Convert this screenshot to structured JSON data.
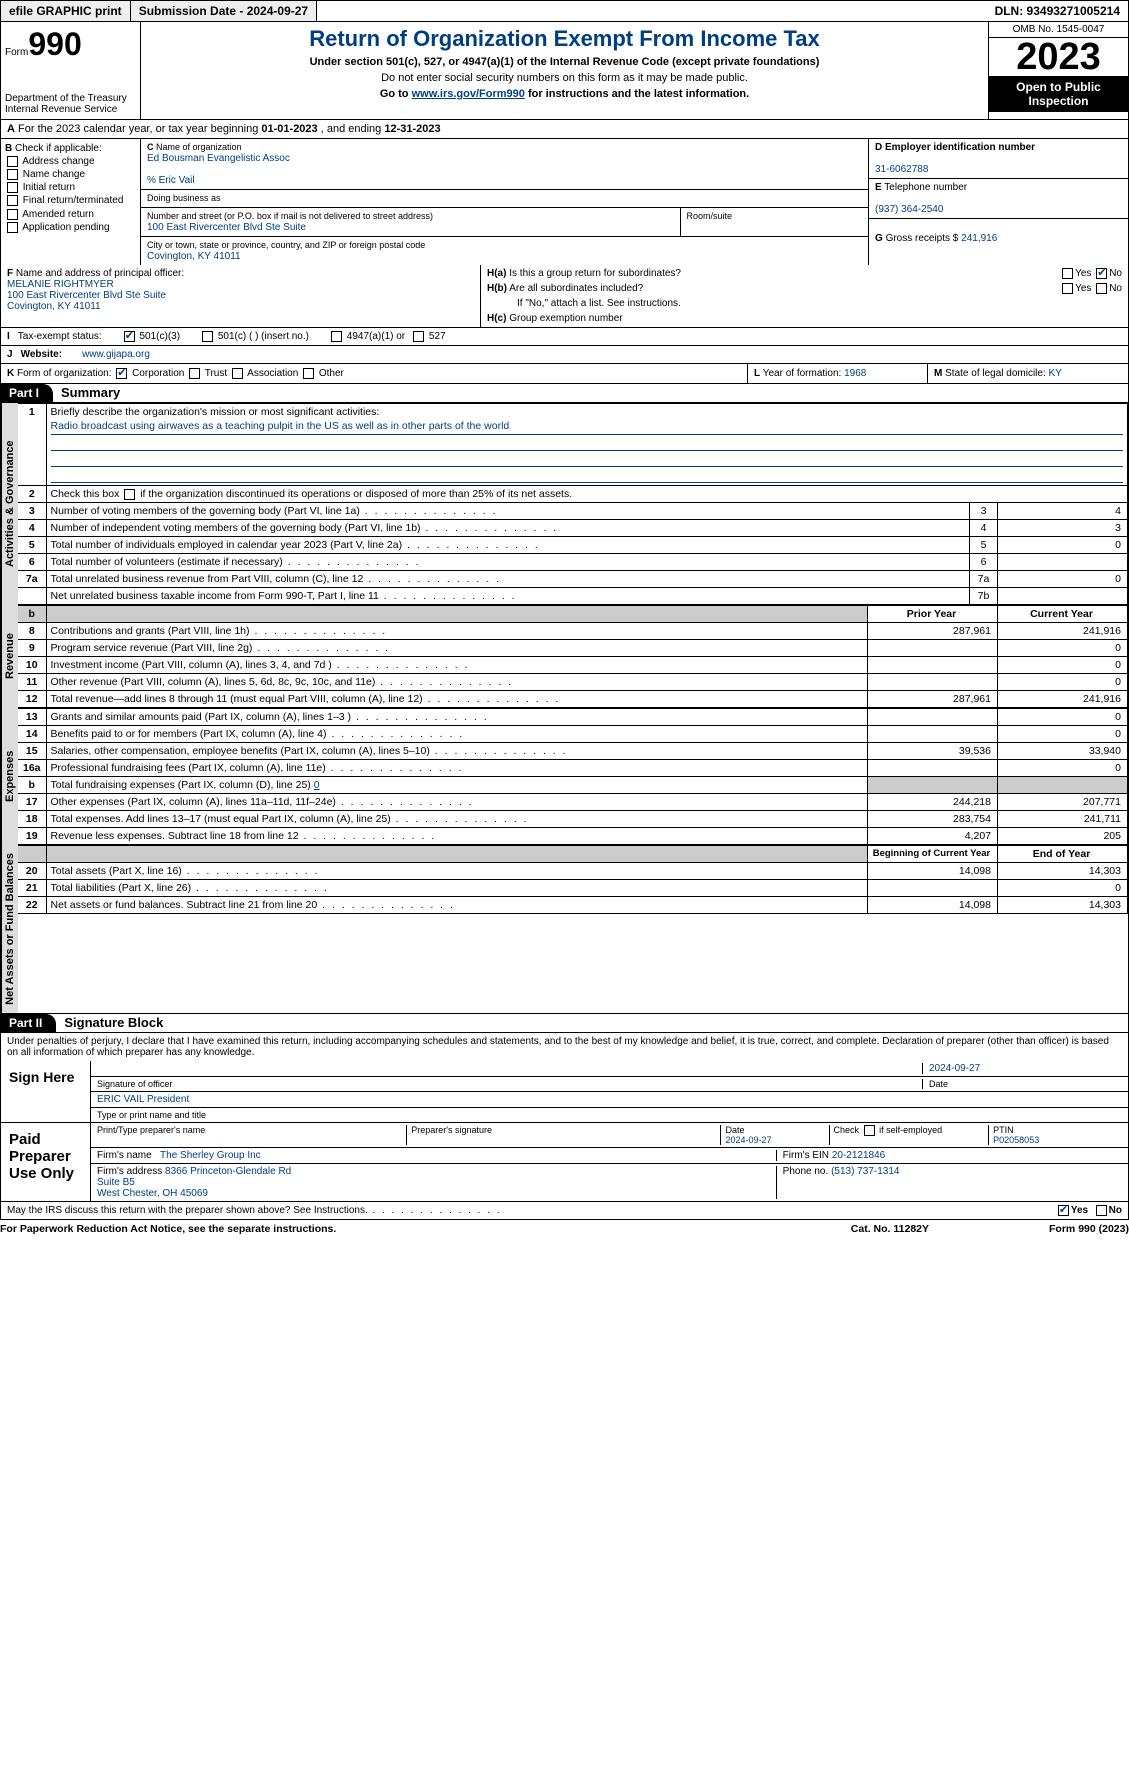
{
  "topbar": {
    "efile": "efile GRAPHIC print",
    "sub": "Submission Date - 2024-09-27",
    "dln": "DLN: 93493271005214"
  },
  "hdr": {
    "form_word": "Form",
    "form_num": "990",
    "dept": "Department of the Treasury\nInternal Revenue Service",
    "title": "Return of Organization Exempt From Income Tax",
    "sub1": "Under section 501(c), 527, or 4947(a)(1) of the Internal Revenue Code (except private foundations)",
    "sub2": "Do not enter social security numbers on this form as it may be made public.",
    "sub3_pre": "Go to ",
    "sub3_link": "www.irs.gov/Form990",
    "sub3_post": " for instructions and the latest information.",
    "omb": "OMB No. 1545-0047",
    "year": "2023",
    "inspect": "Open to Public Inspection"
  },
  "rowA": {
    "text_pre": "For the 2023 calendar year, or tax year beginning ",
    "begin": "01-01-2023",
    "mid": " , and ending ",
    "end": "12-31-2023",
    "label": "A"
  },
  "colB": {
    "hdr": "Check if applicable:",
    "items": [
      "Address change",
      "Name change",
      "Initial return",
      "Final return/terminated",
      "Amended return",
      "Application pending"
    ],
    "label": "B"
  },
  "colC": {
    "name_lbl": "Name of organization",
    "name": "Ed Bousman Evangelistic Assoc",
    "care": "% Eric Vail",
    "dba_lbl": "Doing business as",
    "dba": "",
    "addr_lbl": "Number and street (or P.O. box if mail is not delivered to street address)",
    "room_lbl": "Room/suite",
    "addr": "100 East Rivercenter Blvd Ste Suite",
    "city_lbl": "City or town, state or province, country, and ZIP or foreign postal code",
    "city": "Covington, KY  41011",
    "label": "C"
  },
  "colD": {
    "ein_lbl": "Employer identification number",
    "ein": "31-6062788",
    "label": "D"
  },
  "colE": {
    "tel_lbl": "Telephone number",
    "tel": "(937) 364-2540",
    "label": "E"
  },
  "colG": {
    "lbl": "Gross receipts $",
    "val": "241,916",
    "label": "G"
  },
  "secF": {
    "lbl": "Name and address of principal officer:",
    "name": "MELANIE RIGHTMYER",
    "addr1": "100 East Rivercenter Blvd Ste Suite",
    "addr2": "Covington, KY  41011",
    "label": "F"
  },
  "secH": {
    "a_lbl": "Is this a group return for subordinates?",
    "a_code": "H(a)",
    "b_lbl": "Are all subordinates included?",
    "b_code": "H(b)",
    "b_note": "If \"No,\" attach a list. See instructions.",
    "c_lbl": "Group exemption number",
    "c_code": "H(c)",
    "yes": "Yes",
    "no": "No"
  },
  "rowI": {
    "lbl": "Tax-exempt status:",
    "label": "I",
    "opts": [
      "501(c)(3)",
      "501(c) (  ) (insert no.)",
      "4947(a)(1) or",
      "527"
    ]
  },
  "rowJ": {
    "lbl": "Website:",
    "label": "J",
    "val": "www.gijapa.org"
  },
  "rowK": {
    "lbl": "Form of organization:",
    "label": "K",
    "opts": [
      "Corporation",
      "Trust",
      "Association",
      "Other"
    ],
    "L_lbl": "Year of formation:",
    "L_val": "1968",
    "L": "L",
    "M_lbl": "State of legal domicile:",
    "M_val": "KY",
    "M": "M"
  },
  "part1": {
    "code": "Part I",
    "title": "Summary",
    "q1_lbl": "Briefly describe the organization's mission or most significant activities:",
    "q1_val": "Radio broadcast using airwaves as a teaching pulpit in the US as well as in other parts of the world",
    "q2": "Check this box      if the organization discontinued its operations or disposed of more than 25% of its net assets.",
    "tabs": {
      "ag": "Activities & Governance",
      "rev": "Revenue",
      "exp": "Expenses",
      "na": "Net Assets or Fund Balances"
    },
    "rows": [
      {
        "n": "1",
        "t": "q1"
      },
      {
        "n": "2",
        "t": "q2"
      },
      {
        "n": "3",
        "t": "Number of voting members of the governing body (Part VI, line 1a)",
        "box": "3",
        "c": "4"
      },
      {
        "n": "4",
        "t": "Number of independent voting members of the governing body (Part VI, line 1b)",
        "box": "4",
        "c": "3"
      },
      {
        "n": "5",
        "t": "Total number of individuals employed in calendar year 2023 (Part V, line 2a)",
        "box": "5",
        "c": "0"
      },
      {
        "n": "6",
        "t": "Total number of volunteers (estimate if necessary)",
        "box": "6",
        "c": ""
      },
      {
        "n": "7a",
        "t": "Total unrelated business revenue from Part VIII, column (C), line 12",
        "box": "7a",
        "c": "0"
      },
      {
        "n": "",
        "t": "Net unrelated business taxable income from Form 990-T, Part I, line 11",
        "box": "7b",
        "c": ""
      }
    ],
    "hdr_b": "b",
    "hdr_prior": "Prior Year",
    "hdr_curr": "Current Year",
    "rev": [
      {
        "n": "8",
        "t": "Contributions and grants (Part VIII, line 1h)",
        "p": "287,961",
        "c": "241,916"
      },
      {
        "n": "9",
        "t": "Program service revenue (Part VIII, line 2g)",
        "p": "",
        "c": "0"
      },
      {
        "n": "10",
        "t": "Investment income (Part VIII, column (A), lines 3, 4, and 7d )",
        "p": "",
        "c": "0"
      },
      {
        "n": "11",
        "t": "Other revenue (Part VIII, column (A), lines 5, 6d, 8c, 9c, 10c, and 11e)",
        "p": "",
        "c": "0"
      },
      {
        "n": "12",
        "t": "Total revenue—add lines 8 through 11 (must equal Part VIII, column (A), line 12)",
        "p": "287,961",
        "c": "241,916"
      }
    ],
    "exp": [
      {
        "n": "13",
        "t": "Grants and similar amounts paid (Part IX, column (A), lines 1–3 )",
        "p": "",
        "c": "0"
      },
      {
        "n": "14",
        "t": "Benefits paid to or for members (Part IX, column (A), line 4)",
        "p": "",
        "c": "0"
      },
      {
        "n": "15",
        "t": "Salaries, other compensation, employee benefits (Part IX, column (A), lines 5–10)",
        "p": "39,536",
        "c": "33,940"
      },
      {
        "n": "16a",
        "t": "Professional fundraising fees (Part IX, column (A), line 11e)",
        "p": "",
        "c": "0"
      },
      {
        "n": "b",
        "t": "Total fundraising expenses (Part IX, column (D), line 25) ",
        "link": "0",
        "shade": true
      },
      {
        "n": "17",
        "t": "Other expenses (Part IX, column (A), lines 11a–11d, 11f–24e)",
        "p": "244,218",
        "c": "207,771"
      },
      {
        "n": "18",
        "t": "Total expenses. Add lines 13–17 (must equal Part IX, column (A), line 25)",
        "p": "283,754",
        "c": "241,711"
      },
      {
        "n": "19",
        "t": "Revenue less expenses. Subtract line 18 from line 12",
        "p": "4,207",
        "c": "205"
      }
    ],
    "na_hdr_p": "Beginning of Current Year",
    "na_hdr_c": "End of Year",
    "na": [
      {
        "n": "20",
        "t": "Total assets (Part X, line 16)",
        "p": "14,098",
        "c": "14,303"
      },
      {
        "n": "21",
        "t": "Total liabilities (Part X, line 26)",
        "p": "",
        "c": "0"
      },
      {
        "n": "22",
        "t": "Net assets or fund balances. Subtract line 21 from line 20",
        "p": "14,098",
        "c": "14,303"
      }
    ]
  },
  "part2": {
    "code": "Part II",
    "title": "Signature Block",
    "decl": "Under penalties of perjury, I declare that I have examined this return, including accompanying schedules and statements, and to the best of my knowledge and belief, it is true, correct, and complete. Declaration of preparer (other than officer) is based on all information of which preparer has any knowledge.",
    "sign_here": "Sign Here",
    "sig_officer": "Signature of officer",
    "sig_date": "Date",
    "sig_date_val": "2024-09-27",
    "officer_name": "ERIC VAIL President",
    "name_title": "Type or print name and title",
    "paid": "Paid Preparer Use Only",
    "prep_name_lbl": "Print/Type preparer's name",
    "prep_sig_lbl": "Preparer's signature",
    "prep_date_lbl": "Date",
    "prep_date": "2024-09-27",
    "prep_check": "Check       if self-employed",
    "ptin_lbl": "PTIN",
    "ptin": "P02058053",
    "firm_name_lbl": "Firm's name",
    "firm_name": "The Sherley Group Inc",
    "firm_ein_lbl": "Firm's EIN",
    "firm_ein": "20-2121846",
    "firm_addr_lbl": "Firm's address",
    "firm_addr": "8366 Princeton-Glendale Rd\nSuite B5\nWest Chester, OH  45069",
    "firm_phone_lbl": "Phone no.",
    "firm_phone": "(513) 737-1314",
    "discuss": "May the IRS discuss this return with the preparer shown above? See Instructions.",
    "yes": "Yes",
    "no": "No"
  },
  "footer": {
    "l": "For Paperwork Reduction Act Notice, see the separate instructions.",
    "m": "Cat. No. 11282Y",
    "r": "Form 990 (2023)"
  }
}
